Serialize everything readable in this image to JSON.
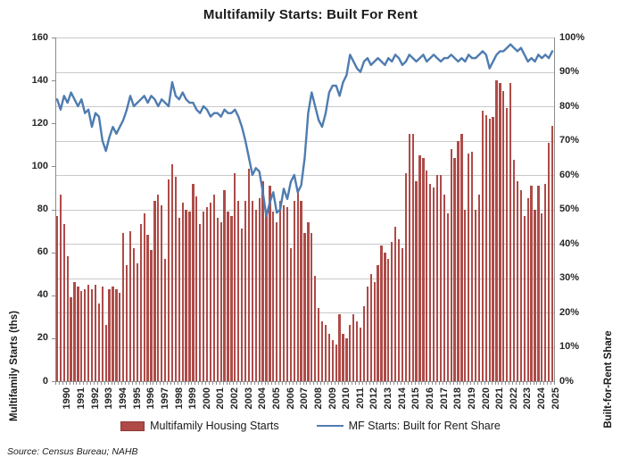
{
  "title": "Multifamily Starts: Built For Rent",
  "source": "Source: Census Bureau; NAHB",
  "colors": {
    "bar": "#ae4b48",
    "bar_border": "#8e3734",
    "line": "#4e7cb0",
    "gridline": "#c9c9c9",
    "axis": "#8c8c8c",
    "text": "#262626"
  },
  "chart_data": {
    "type": "combo",
    "subtype": "bar+line",
    "x_start": "1990Q1",
    "x_end": "2025Q3",
    "x_frequency": "quarterly",
    "year_labels": [
      "1990",
      "1991",
      "1992",
      "1993",
      "1994",
      "1995",
      "1996",
      "1997",
      "1998",
      "1999",
      "2000",
      "2001",
      "2002",
      "2003",
      "2004",
      "2005",
      "2006",
      "2007",
      "2008",
      "2009",
      "2010",
      "2011",
      "2012",
      "2013",
      "2014",
      "2015",
      "2016",
      "2017",
      "2018",
      "2019",
      "2020",
      "2021",
      "2022",
      "2023",
      "2024",
      "2025"
    ],
    "left_axis": {
      "title": "Multifamily Starts (ths)",
      "min": 0,
      "max": 160,
      "step": 20,
      "tick_labels": [
        "0",
        "20",
        "40",
        "60",
        "80",
        "100",
        "120",
        "140",
        "160"
      ]
    },
    "right_axis": {
      "title": "Built-for-Rent Share",
      "min": 0,
      "max": 100,
      "step": 10,
      "tick_labels": [
        "0%",
        "10%",
        "20%",
        "30%",
        "40%",
        "50%",
        "60%",
        "70%",
        "80%",
        "90%",
        "100%"
      ]
    },
    "grid": "horizontal-10pct",
    "legend_position": "bottom",
    "series": [
      {
        "name": "Multifamily Housing Starts",
        "type": "bar",
        "axis": "left",
        "color": "#ae4b48",
        "values": [
          77,
          87,
          73,
          58,
          39,
          46,
          44,
          42,
          43,
          45,
          43,
          45,
          36,
          44,
          26,
          43,
          44,
          43,
          41,
          69,
          54,
          70,
          62,
          55,
          73,
          78,
          68,
          61,
          84,
          87,
          82,
          57,
          94,
          101,
          95,
          76,
          83,
          80,
          79,
          92,
          86,
          73,
          79,
          81,
          83,
          87,
          76,
          74,
          89,
          79,
          77,
          97,
          84,
          71,
          84,
          99,
          84,
          80,
          85,
          93,
          80,
          91,
          79,
          74,
          84,
          82,
          81,
          62,
          84,
          89,
          84,
          69,
          74,
          69,
          49,
          34,
          28,
          26,
          22,
          19,
          17,
          31,
          22,
          20,
          26,
          31,
          28,
          25,
          35,
          44,
          50,
          46,
          54,
          63,
          60,
          57,
          65,
          72,
          66,
          62,
          97,
          115,
          115,
          93,
          105,
          104,
          98,
          92,
          90,
          96,
          96,
          87,
          78,
          108,
          104,
          112,
          115,
          80,
          106,
          107,
          80,
          87,
          126,
          124,
          122,
          123,
          140,
          139,
          135,
          127,
          139,
          103,
          93,
          89,
          77,
          85,
          91,
          80,
          91,
          78,
          92,
          111,
          119
        ]
      },
      {
        "name": "MF Starts: Built for Rent Share",
        "type": "line",
        "axis": "right",
        "unit": "%",
        "color": "#4e7cb0",
        "values": [
          82,
          79,
          83,
          81,
          84,
          82,
          80,
          82,
          78,
          79,
          74,
          78,
          77,
          70,
          67,
          71,
          74,
          72,
          74,
          76,
          79,
          83,
          80,
          81,
          82,
          83,
          81,
          83,
          82,
          80,
          82,
          81,
          80,
          87,
          83,
          82,
          84,
          82,
          81,
          81,
          79,
          78,
          80,
          79,
          77,
          78,
          78,
          77,
          79,
          78,
          78,
          79,
          77,
          74,
          70,
          65,
          60,
          62,
          61,
          55,
          48,
          52,
          55,
          49,
          50,
          56,
          53,
          58,
          60,
          55,
          57,
          65,
          78,
          84,
          80,
          76,
          74,
          78,
          84,
          86,
          86,
          83,
          87,
          89,
          95,
          93,
          91,
          90,
          93,
          94,
          92,
          93,
          94,
          93,
          92,
          94,
          93,
          95,
          94,
          92,
          93,
          95,
          94,
          93,
          94,
          95,
          93,
          94,
          95,
          94,
          93,
          94,
          94,
          95,
          94,
          93,
          94,
          93,
          95,
          94,
          94,
          95,
          96,
          95,
          91,
          93,
          95,
          96,
          96,
          97,
          98,
          97,
          96,
          97,
          95,
          93,
          94,
          93,
          95,
          94,
          95,
          94,
          96
        ]
      }
    ]
  }
}
